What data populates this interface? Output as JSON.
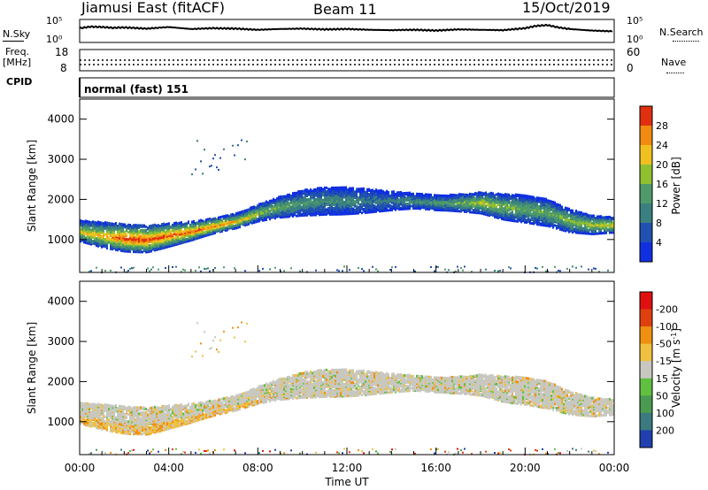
{
  "header": {
    "station": "Jiamusi East (fitACF)",
    "beam": "Beam 11",
    "date": "15/Oct/2019"
  },
  "strip_labels": {
    "nsky": "N.Sky",
    "nsearch": "N.Search",
    "freq_top": "Freq.",
    "freq_unit": "[MHz]",
    "nave": "Nave",
    "cpid": "CPID",
    "cpid_value": "normal (fast) 151"
  },
  "chart_data": [
    {
      "type": "line",
      "name": "noise",
      "y_left_ticks": [
        "10^5",
        "10^0"
      ],
      "y_right_ticks": [
        "10^5",
        "10^0"
      ],
      "x": [
        0,
        0.5,
        1,
        1.5,
        2,
        3,
        4,
        5,
        6,
        7,
        8,
        9,
        10,
        11,
        12,
        13,
        14,
        15,
        16,
        17,
        18,
        19,
        20,
        20.5,
        21,
        21.5,
        22,
        23,
        24
      ],
      "y": [
        3.2,
        3.6,
        3.5,
        3.3,
        3.4,
        3.1,
        3.5,
        3.0,
        3.2,
        3.1,
        2.8,
        3.0,
        3.1,
        2.9,
        3.0,
        2.8,
        2.7,
        2.8,
        2.6,
        2.9,
        2.8,
        2.7,
        3.2,
        3.8,
        4.0,
        3.4,
        3.0,
        2.6,
        2.4
      ],
      "ylim": [
        0,
        5
      ]
    },
    {
      "type": "line",
      "name": "frequency-nave",
      "y_left_ticks": [
        "18",
        "8"
      ],
      "y_right_ticks": [
        "60",
        "0"
      ],
      "freq_mhz": 10.5,
      "nave": 30,
      "ylim_left": [
        8,
        18
      ],
      "ylim_right": [
        0,
        60
      ]
    },
    {
      "type": "heatmap",
      "name": "power",
      "ylabel": "Slant Range [km]",
      "yticks": [
        1000,
        2000,
        3000,
        4000
      ],
      "ylim": [
        180,
        4500
      ],
      "xlim": [
        0,
        24
      ],
      "colorbar": {
        "label": "Power [dB]",
        "ticks": [
          "4",
          "8",
          "12",
          "16",
          "20",
          "24",
          "28"
        ],
        "colors": [
          "#1030e0",
          "#2050b0",
          "#3a8080",
          "#4f9a6a",
          "#90c030",
          "#f0c020",
          "#f08a10",
          "#e03010"
        ]
      },
      "echo_band": {
        "hours": [
          0,
          1,
          2,
          3,
          4,
          5,
          6,
          7,
          8,
          9,
          10,
          11,
          12,
          13,
          14,
          15,
          16,
          17,
          18,
          19,
          20,
          21,
          22,
          23,
          24
        ],
        "range_center_km": [
          1250,
          1150,
          1080,
          1050,
          1150,
          1250,
          1380,
          1500,
          1700,
          1850,
          1950,
          2000,
          2000,
          2000,
          2000,
          2000,
          1950,
          1950,
          1950,
          1850,
          1800,
          1700,
          1500,
          1400,
          1400
        ],
        "peak_power_db": [
          20,
          22,
          28,
          28,
          27,
          26,
          25,
          22,
          18,
          16,
          14,
          12,
          12,
          10,
          10,
          12,
          14,
          16,
          20,
          18,
          16,
          16,
          18,
          20,
          22
        ]
      }
    },
    {
      "type": "heatmap",
      "name": "velocity",
      "ylabel": "Slant Range [km]",
      "xlabel": "Time UT",
      "yticks": [
        1000,
        2000,
        3000,
        4000
      ],
      "ylim": [
        180,
        4500
      ],
      "xlim": [
        0,
        24
      ],
      "xtick_labels": [
        "00:00",
        "04:00",
        "08:00",
        "12:00",
        "16:00",
        "20:00",
        "00:00"
      ],
      "colorbar": {
        "label": "Velocity [m s-1]",
        "label_main": "Velocity [m s",
        "label_sup": "-1",
        "label_end": "]",
        "ticks": [
          "200",
          "100",
          "50",
          "15",
          "-15",
          "-50",
          "-100",
          "-200"
        ],
        "colors": [
          "#2040b0",
          "#3a7a80",
          "#4a9a50",
          "#60c040",
          "#c8c8c0",
          "#f0c040",
          "#f09010",
          "#e04010",
          "#e01010"
        ]
      }
    }
  ]
}
